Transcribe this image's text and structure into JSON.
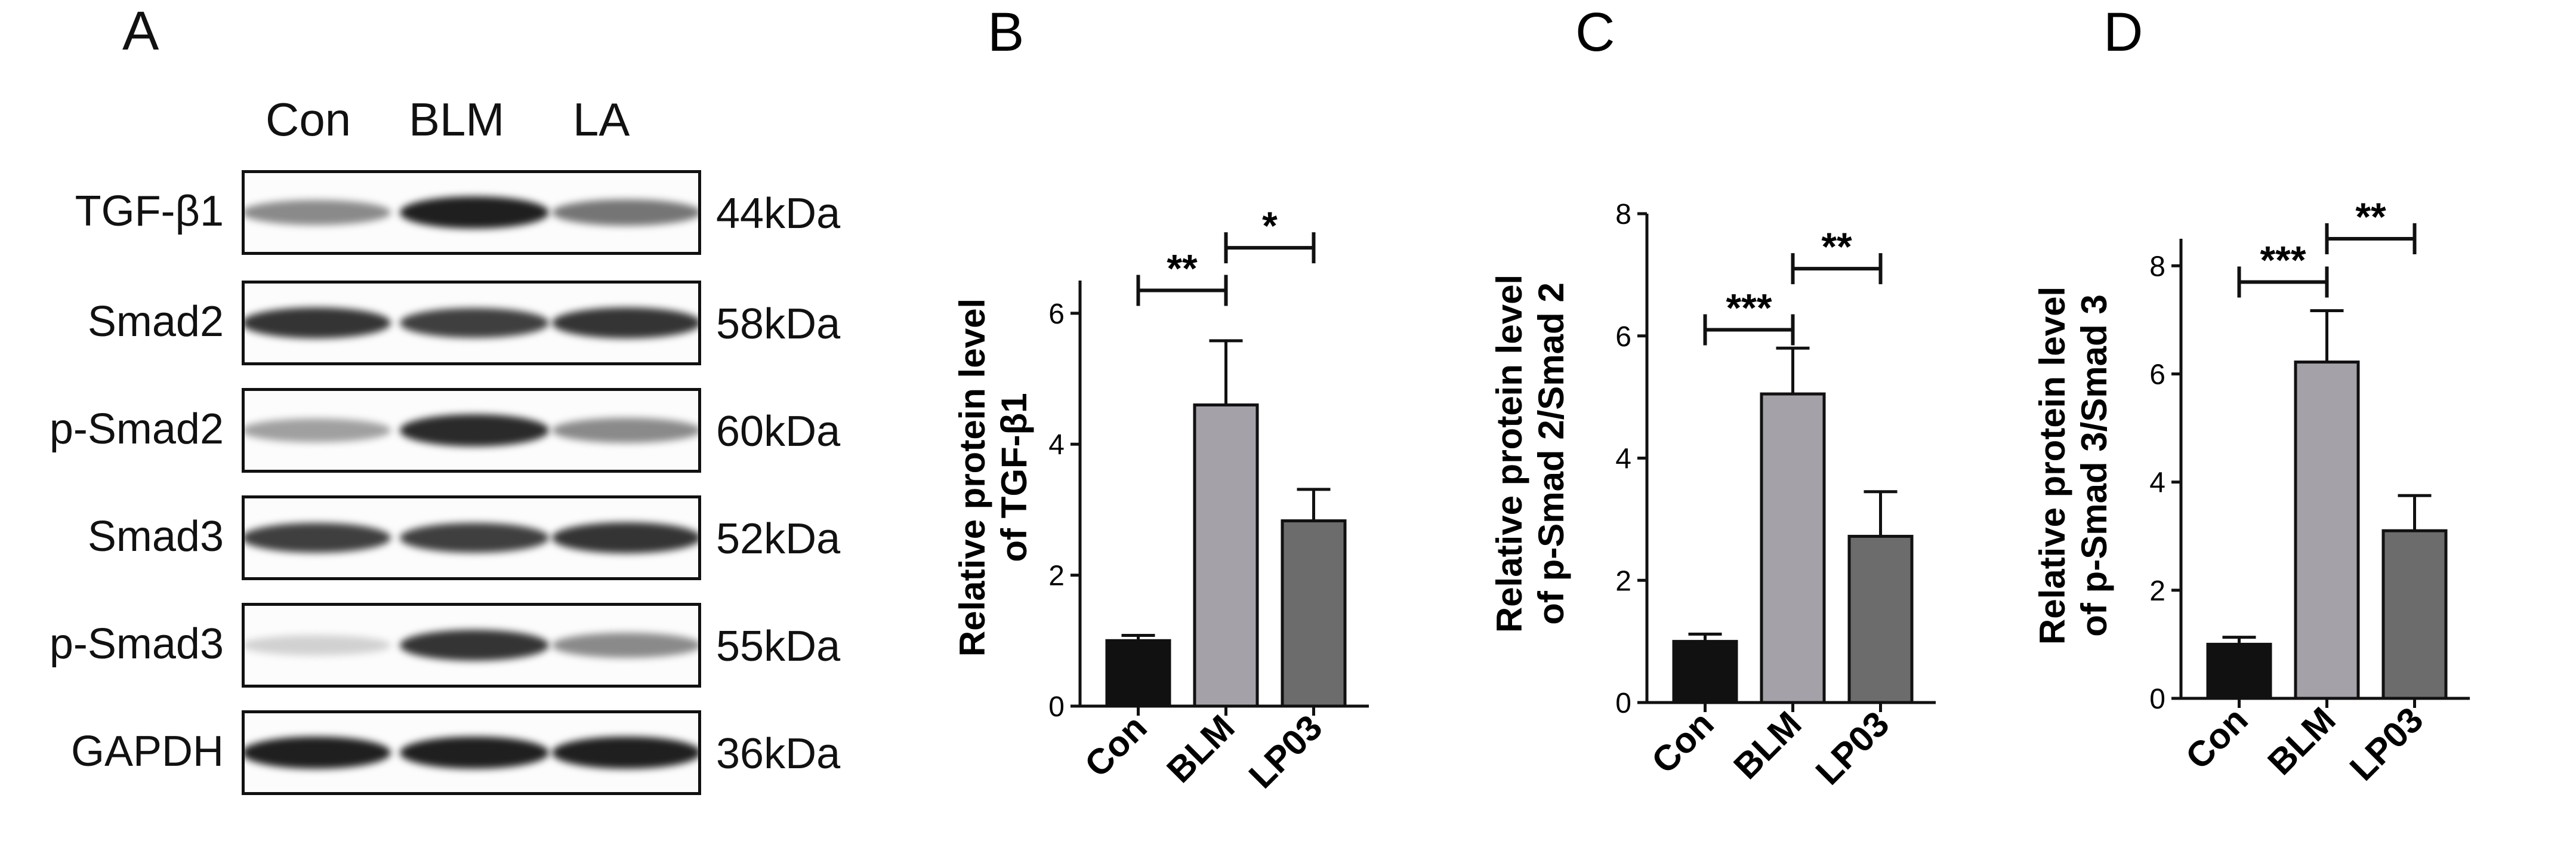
{
  "panel_a": {
    "letter": "A",
    "lanes": [
      "Con",
      "BLM",
      "LA"
    ],
    "rows": [
      {
        "label": "TGF-β1",
        "kda": "44kDa",
        "intensities": [
          0.45,
          0.95,
          0.55
        ]
      },
      {
        "label": "Smad2",
        "kda": "58kDa",
        "intensities": [
          0.85,
          0.8,
          0.85
        ]
      },
      {
        "label": "p-Smad2",
        "kda": "60kDa",
        "intensities": [
          0.35,
          0.9,
          0.45
        ]
      },
      {
        "label": "Smad3",
        "kda": "52kDa",
        "intensities": [
          0.8,
          0.8,
          0.85
        ]
      },
      {
        "label": "p-Smad3",
        "kda": "55kDa",
        "intensities": [
          0.12,
          0.85,
          0.45
        ]
      },
      {
        "label": "GAPDH",
        "kda": "36kDa",
        "intensities": [
          0.95,
          0.95,
          0.95
        ]
      }
    ]
  },
  "chart_data": [
    {
      "panel": "B",
      "type": "bar",
      "categories": [
        "Con",
        "BLM",
        "LP03"
      ],
      "values": [
        1.0,
        4.6,
        2.83
      ],
      "errors": [
        0.08,
        0.98,
        0.48
      ],
      "bar_colors": [
        "#111111",
        "#a5a1a8",
        "#6c6c6c"
      ],
      "ylabel_line1": "Relative protein level",
      "ylabel_line2": "of TGF-β1",
      "ylim": [
        0,
        6
      ],
      "yticks": [
        0,
        2,
        4,
        6
      ],
      "ymax_axis": 6.5,
      "significance": [
        {
          "from": 0,
          "to": 1,
          "label": "**",
          "y": 6.35
        },
        {
          "from": 1,
          "to": 2,
          "label": "*",
          "y": 7.0
        }
      ]
    },
    {
      "panel": "C",
      "type": "bar",
      "categories": [
        "Con",
        "BLM",
        "LP03"
      ],
      "values": [
        1.0,
        5.05,
        2.72
      ],
      "errors": [
        0.12,
        0.75,
        0.73
      ],
      "bar_colors": [
        "#111111",
        "#a5a1a8",
        "#6c6c6c"
      ],
      "ylabel_line1": "Relative protein level",
      "ylabel_line2": "of p-Smad 2/Smad 2",
      "ylim": [
        0,
        8
      ],
      "yticks": [
        0,
        2,
        4,
        6,
        8
      ],
      "ymax_axis": 8,
      "significance": [
        {
          "from": 0,
          "to": 1,
          "label": "***",
          "y": 6.1
        },
        {
          "from": 1,
          "to": 2,
          "label": "**",
          "y": 7.1
        }
      ]
    },
    {
      "panel": "D",
      "type": "bar",
      "categories": [
        "Con",
        "BLM",
        "LP03"
      ],
      "values": [
        1.0,
        6.22,
        3.1
      ],
      "errors": [
        0.13,
        0.95,
        0.65
      ],
      "bar_colors": [
        "#111111",
        "#a5a1a8",
        "#6c6c6c"
      ],
      "ylabel_line1": "Relative protein level",
      "ylabel_line2": "of p-Smad 3/Smad 3",
      "ylim": [
        0,
        8
      ],
      "yticks": [
        0,
        2,
        4,
        6,
        8
      ],
      "ymax_axis": 8.5,
      "significance": [
        {
          "from": 0,
          "to": 1,
          "label": "***",
          "y": 7.7
        },
        {
          "from": 1,
          "to": 2,
          "label": "**",
          "y": 8.5
        }
      ]
    }
  ]
}
